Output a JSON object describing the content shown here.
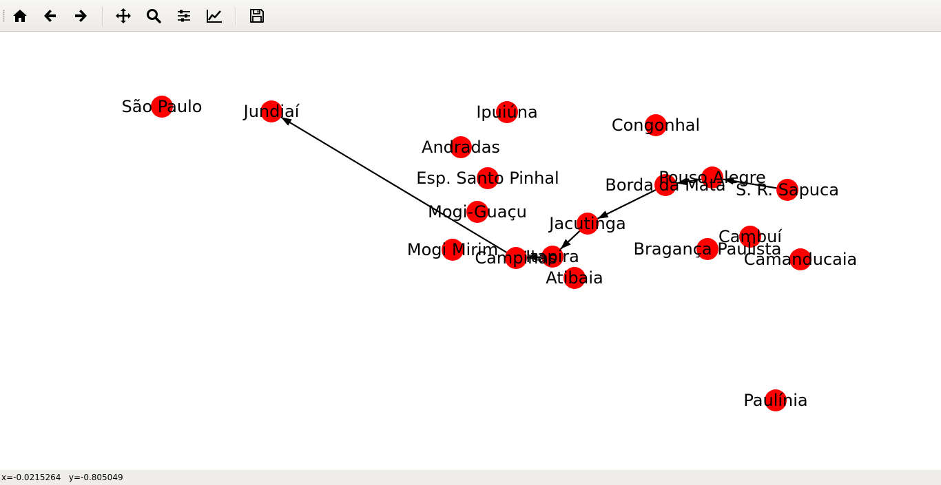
{
  "toolbar": {
    "buttons": [
      {
        "name": "home-button",
        "icon": "home-icon"
      },
      {
        "name": "back-button",
        "icon": "arrow-left-icon"
      },
      {
        "name": "forward-button",
        "icon": "arrow-right-icon"
      },
      {
        "name": "pan-button",
        "icon": "move-icon"
      },
      {
        "name": "zoom-button",
        "icon": "magnifier-icon"
      },
      {
        "name": "configure-subplots-button",
        "icon": "sliders-icon"
      },
      {
        "name": "edit-axis-button",
        "icon": "line-chart-icon"
      },
      {
        "name": "save-button",
        "icon": "floppy-disk-icon"
      }
    ]
  },
  "graph": {
    "node_color": "#ff0000",
    "edge_color": "#000000",
    "nodes": [
      {
        "id": "sao_paulo",
        "label": "São Paulo"
      },
      {
        "id": "jundiai",
        "label": "Jundiaí"
      },
      {
        "id": "ipuiuna",
        "label": "Ipuiúna"
      },
      {
        "id": "congonhal",
        "label": "Congonhal"
      },
      {
        "id": "andradas",
        "label": "Andradas"
      },
      {
        "id": "esp_santo_pinhal",
        "label": "Esp. Santo Pinhal"
      },
      {
        "id": "pouso_alegre",
        "label": "Pouso Alegre"
      },
      {
        "id": "borda_da_mata",
        "label": "Borda da Mata"
      },
      {
        "id": "sr_sapuca",
        "label": "S. R. Sapuca"
      },
      {
        "id": "mogi_guacu",
        "label": "Mogi-Guaçu"
      },
      {
        "id": "jacutinga",
        "label": "Jacutinga"
      },
      {
        "id": "cambui",
        "label": "Cambuí"
      },
      {
        "id": "mogi_mirim",
        "label": "Mogi Mirim"
      },
      {
        "id": "campinas",
        "label": "Campinas"
      },
      {
        "id": "itapira",
        "label": "Itapira"
      },
      {
        "id": "braganca_paulista",
        "label": "Bragança Paulista"
      },
      {
        "id": "camanducaia",
        "label": "Camanducaia"
      },
      {
        "id": "atibaia",
        "label": "Atibaia"
      },
      {
        "id": "paulinia",
        "label": "Paulínia"
      }
    ],
    "edges": [
      {
        "from": "campinas",
        "to": "jundiai"
      },
      {
        "from": "itapira",
        "to": "campinas"
      },
      {
        "from": "jacutinga",
        "to": "itapira"
      },
      {
        "from": "borda_da_mata",
        "to": "jacutinga"
      },
      {
        "from": "pouso_alegre",
        "to": "borda_da_mata"
      },
      {
        "from": "sr_sapuca",
        "to": "pouso_alegre"
      }
    ]
  },
  "status": {
    "x_readout": "x=-0.0215264",
    "y_readout": "y=-0.805049"
  }
}
